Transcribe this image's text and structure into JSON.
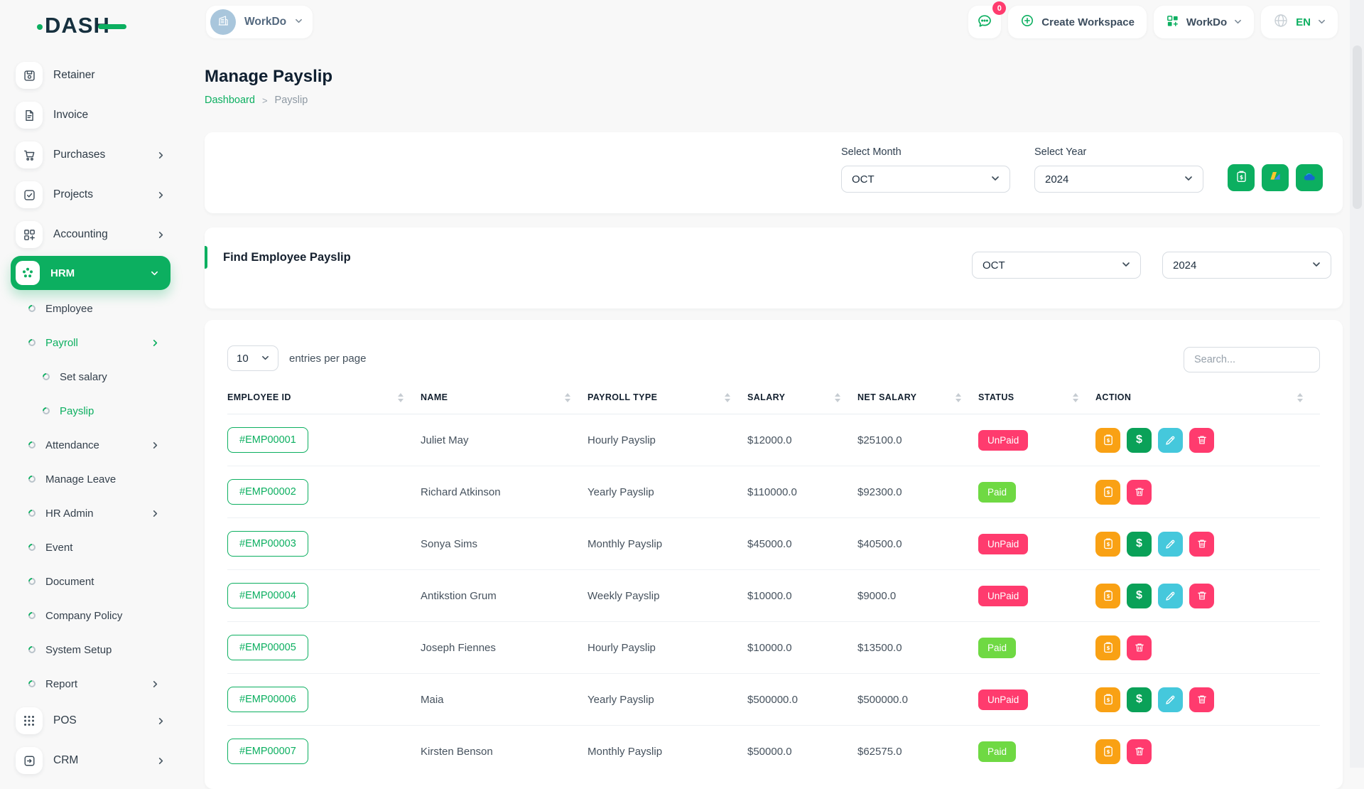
{
  "brand": {
    "logo": "DASH"
  },
  "topbar": {
    "workspace": {
      "icon": "building-icon",
      "label": "WorkDo"
    },
    "messages": {
      "icon": "chat-icon",
      "badge": "0"
    },
    "create_workspace": {
      "icon": "plus-circle-icon",
      "label": "Create Workspace"
    },
    "workdo_menu": {
      "icon": "workdo-grid-icon",
      "label": "WorkDo"
    },
    "language": {
      "icon": "globe-icon",
      "label": "EN"
    }
  },
  "sidebar": {
    "items": [
      {
        "label": "Retainer",
        "type": "top",
        "icon": "save-icon"
      },
      {
        "label": "Invoice",
        "type": "top",
        "icon": "invoice-icon"
      },
      {
        "label": "Purchases",
        "type": "top",
        "icon": "cart-icon",
        "chevron": "right"
      },
      {
        "label": "Projects",
        "type": "top",
        "icon": "check-square-icon",
        "chevron": "right"
      },
      {
        "label": "Accounting",
        "type": "top",
        "icon": "category-icon",
        "chevron": "right"
      },
      {
        "label": "HRM",
        "type": "hrm",
        "icon": "hrm-icon",
        "chevron": "down",
        "active": true
      },
      {
        "label": "Employee",
        "type": "sub"
      },
      {
        "label": "Payroll",
        "type": "sub",
        "chevron": "right",
        "active": true
      },
      {
        "label": "Set salary",
        "type": "subsub"
      },
      {
        "label": "Payslip",
        "type": "subsub",
        "active": true
      },
      {
        "label": "Attendance",
        "type": "sub",
        "chevron": "right"
      },
      {
        "label": "Manage Leave",
        "type": "sub"
      },
      {
        "label": "HR Admin",
        "type": "sub",
        "chevron": "right"
      },
      {
        "label": "Event",
        "type": "sub"
      },
      {
        "label": "Document",
        "type": "sub"
      },
      {
        "label": "Company Policy",
        "type": "sub"
      },
      {
        "label": "System Setup",
        "type": "sub"
      },
      {
        "label": "Report",
        "type": "sub",
        "chevron": "right"
      },
      {
        "label": "POS",
        "type": "top",
        "icon": "pos-icon",
        "chevron": "right"
      },
      {
        "label": "CRM",
        "type": "top",
        "icon": "crm-icon",
        "chevron": "right"
      }
    ]
  },
  "page": {
    "title": "Manage Payslip",
    "breadcrumb": {
      "home": "Dashboard",
      "current": "Payslip"
    }
  },
  "filter_card": {
    "month_label": "Select Month",
    "month_value": "OCT",
    "year_label": "Select Year",
    "year_value": "2024",
    "buttons": [
      "bulk-payment-button",
      "google-drive-button",
      "onedrive-button"
    ]
  },
  "find_card": {
    "title": "Find Employee Payslip",
    "month_value": "OCT",
    "year_value": "2024"
  },
  "table": {
    "entries_value": "10",
    "entries_label": "entries per page",
    "search_placeholder": "Search...",
    "columns": [
      "EMPLOYEE ID",
      "NAME",
      "PAYROLL TYPE",
      "SALARY",
      "NET SALARY",
      "STATUS",
      "ACTION"
    ],
    "rows": [
      {
        "employee_id": "#EMP00001",
        "name": "Juliet May",
        "payroll_type": "Hourly Payslip",
        "salary": "$12000.0",
        "net_salary": "$25100.0",
        "status": "UnPaid",
        "actions": [
          "payslip",
          "pay",
          "edit",
          "delete"
        ]
      },
      {
        "employee_id": "#EMP00002",
        "name": "Richard Atkinson",
        "payroll_type": "Yearly Payslip",
        "salary": "$110000.0",
        "net_salary": "$92300.0",
        "status": "Paid",
        "actions": [
          "payslip",
          "delete"
        ]
      },
      {
        "employee_id": "#EMP00003",
        "name": "Sonya Sims",
        "payroll_type": "Monthly Payslip",
        "salary": "$45000.0",
        "net_salary": "$40500.0",
        "status": "UnPaid",
        "actions": [
          "payslip",
          "pay",
          "edit",
          "delete"
        ]
      },
      {
        "employee_id": "#EMP00004",
        "name": "Antikstion Grum",
        "payroll_type": "Weekly Payslip",
        "salary": "$10000.0",
        "net_salary": "$9000.0",
        "status": "UnPaid",
        "actions": [
          "payslip",
          "pay",
          "edit",
          "delete"
        ]
      },
      {
        "employee_id": "#EMP00005",
        "name": "Joseph Fiennes",
        "payroll_type": "Hourly Payslip",
        "salary": "$10000.0",
        "net_salary": "$13500.0",
        "status": "Paid",
        "actions": [
          "payslip",
          "delete"
        ]
      },
      {
        "employee_id": "#EMP00006",
        "name": "Maia",
        "payroll_type": "Yearly Payslip",
        "salary": "$500000.0",
        "net_salary": "$500000.0",
        "status": "UnPaid",
        "actions": [
          "payslip",
          "pay",
          "edit",
          "delete"
        ]
      },
      {
        "employee_id": "#EMP00007",
        "name": "Kirsten Benson",
        "payroll_type": "Monthly Payslip",
        "salary": "$50000.0",
        "net_salary": "$62575.0",
        "status": "Paid",
        "actions": [
          "payslip",
          "delete"
        ]
      }
    ]
  },
  "colors": {
    "primary": "#0CAF60",
    "status": {
      "Paid": "#6FD943",
      "UnPaid": "#FF3B6E"
    },
    "actions": {
      "payslip": "#F9A114",
      "pay": "#0AA158",
      "edit": "#45C8DC",
      "delete": "#FF3B6E"
    }
  }
}
